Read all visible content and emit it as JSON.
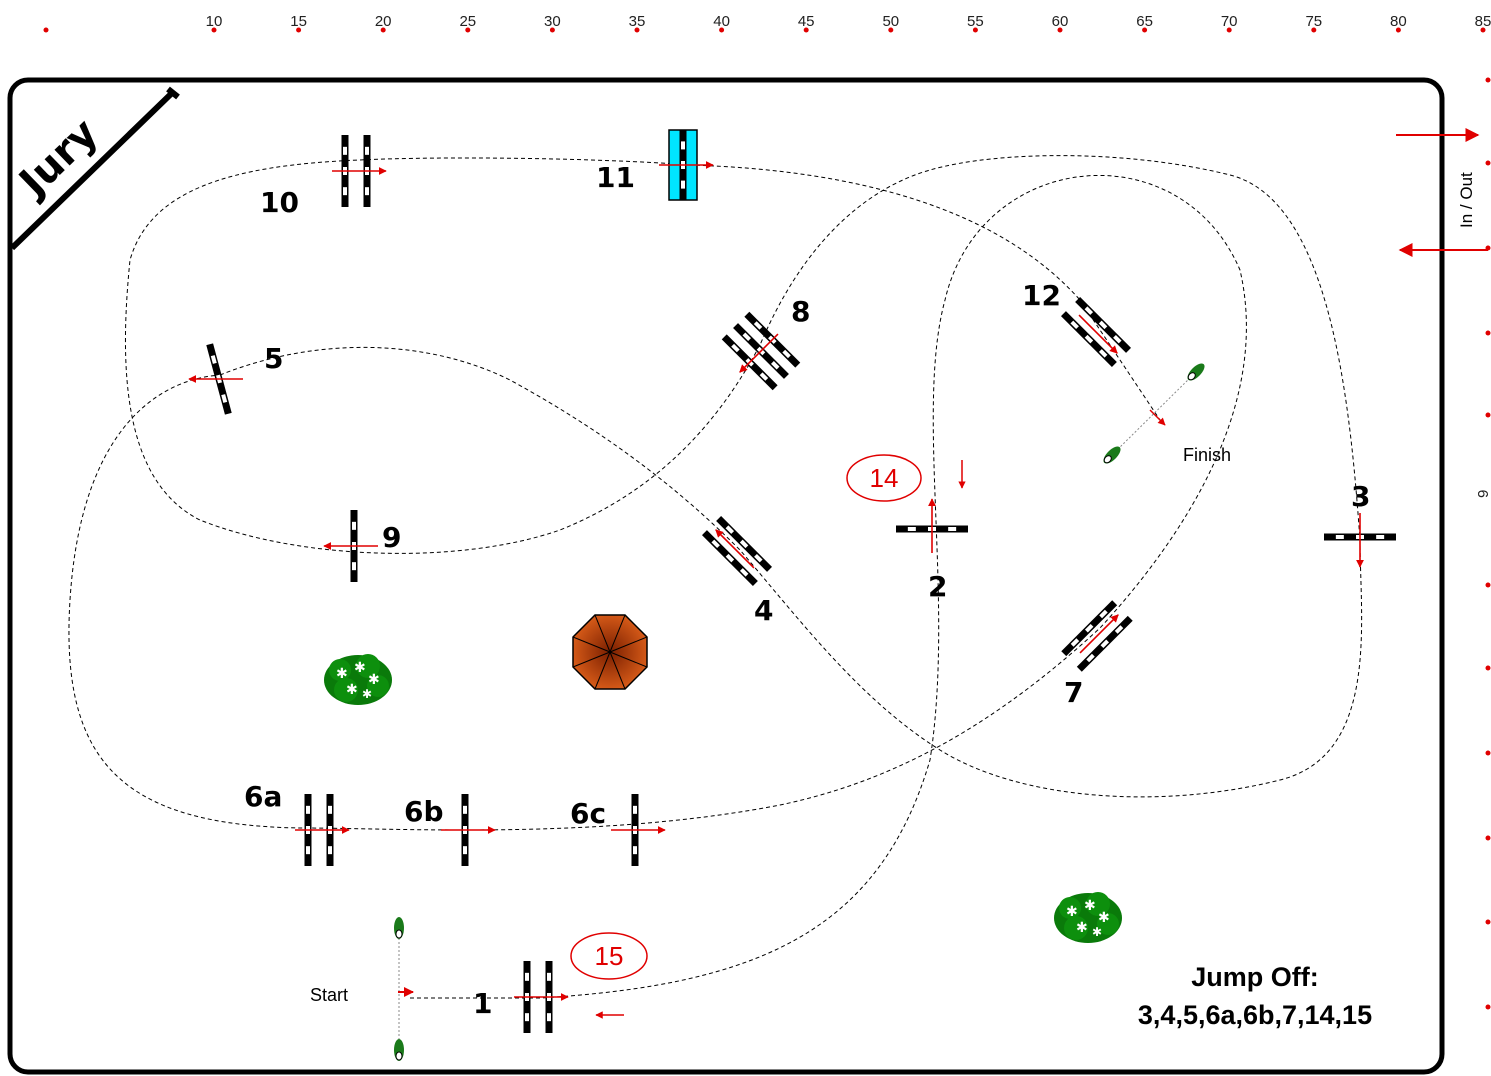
{
  "diagram": {
    "jury_label": "Jury",
    "in_out_label": "In / Out",
    "start_label": "Start",
    "finish_label": "Finish",
    "jump_off": {
      "title": "Jump Off:",
      "sequence": "3,4,5,6a,6b,7,14,15"
    },
    "ruler_ticks": [
      "10",
      "15",
      "20",
      "25",
      "30",
      "35",
      "40",
      "45",
      "50",
      "55",
      "60",
      "65",
      "70",
      "75",
      "80",
      "85"
    ],
    "side_ruler_partial_label": "9",
    "jumps": [
      "1",
      "2",
      "3",
      "4",
      "5",
      "6a",
      "6b",
      "6c",
      "7",
      "8",
      "9",
      "10",
      "11",
      "12"
    ],
    "circled_numbers": [
      "14",
      "15"
    ],
    "colors": {
      "accent_red": "#e00000",
      "water_jump": "#00e5ff",
      "bush_green": "#0a7a0a",
      "umbrella": "#c44a0c"
    },
    "icons": [
      "umbrella-icon",
      "bush-icon",
      "flower-pot-icon",
      "arrow-icon"
    ]
  }
}
